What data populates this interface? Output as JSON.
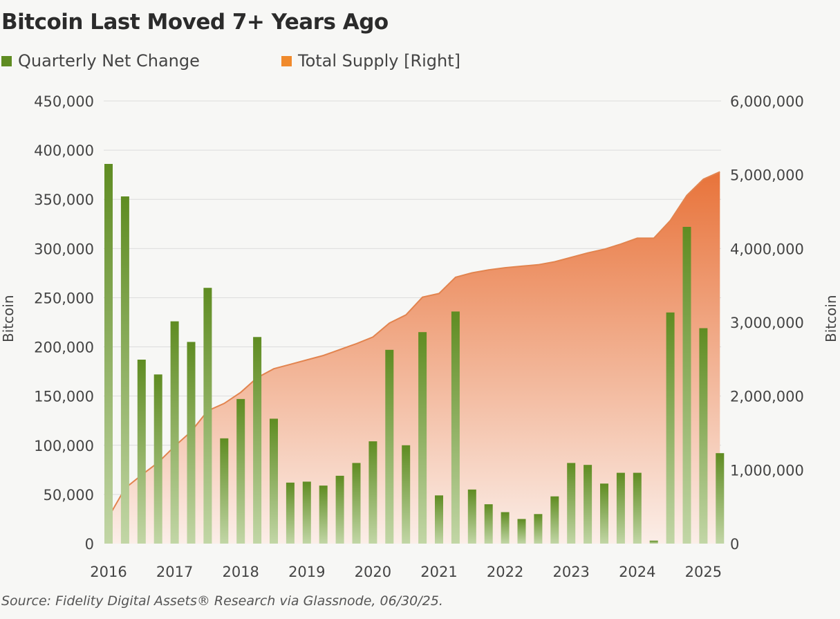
{
  "title": "Bitcoin Last Moved 7+ Years Ago",
  "source": "Source: Fidelity Digital Assets® Research via Glassnode, 06/30/25.",
  "colors": {
    "bar_top": "#5f8c22",
    "bar_bottom": "#c2d6a6",
    "area_top": "#e8733a",
    "area_bottom": "#fbeee8",
    "line": "#e2844f",
    "grid": "#dcdcdc"
  },
  "chart_data": {
    "type": "bar",
    "title": "Bitcoin Last Moved 7+ Years Ago",
    "ylabel": "Bitcoin",
    "y2label": "Bitcoin",
    "ylim": [
      0,
      450000
    ],
    "y2lim": [
      0,
      6000000
    ],
    "yticks": [
      "450,000",
      "400,000",
      "350,000",
      "300,000",
      "250,000",
      "200,000",
      "150,000",
      "100,000",
      "50,000",
      "0"
    ],
    "y2ticks": [
      "6,000,000",
      "5,000,000",
      "4,000,000",
      "3,000,000",
      "2,000,000",
      "1,000,000",
      "0"
    ],
    "xticks": [
      "2016",
      "2017",
      "2018",
      "2019",
      "2020",
      "2021",
      "2022",
      "2023",
      "2024",
      "2025"
    ],
    "grid": true,
    "legend_position": "top",
    "series": [
      {
        "name": "Quarterly Net Change",
        "type": "bar",
        "axis": "left",
        "values": [
          386000,
          353000,
          187000,
          172000,
          226000,
          205000,
          260000,
          107000,
          147000,
          210000,
          127000,
          62000,
          63000,
          59000,
          69000,
          82000,
          104000,
          197000,
          100000,
          215000,
          49000,
          236000,
          55000,
          40000,
          32000,
          25000,
          30000,
          48000,
          82000,
          80000,
          61000,
          72000,
          72000,
          3000,
          235000,
          322000,
          219000,
          92000
        ]
      },
      {
        "name": "Total Supply [Right]",
        "type": "area",
        "axis": "right",
        "values": [
          360000,
          750000,
          930000,
          1100000,
          1320000,
          1520000,
          1800000,
          1900000,
          2050000,
          2250000,
          2370000,
          2430000,
          2490000,
          2550000,
          2630000,
          2710000,
          2800000,
          2990000,
          3100000,
          3340000,
          3390000,
          3610000,
          3670000,
          3710000,
          3740000,
          3760000,
          3780000,
          3820000,
          3880000,
          3940000,
          3990000,
          4060000,
          4140000,
          4140000,
          4380000,
          4720000,
          4940000,
          5040000
        ]
      }
    ]
  }
}
